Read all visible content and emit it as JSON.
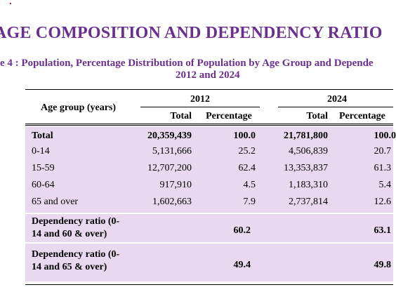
{
  "heading": "AGE COMPOSITION AND DEPENDENCY RATIO",
  "caption_line1": "e 4 : Population, Percentage Distribution of Population by Age Group and Depende",
  "caption_line2": "2012 and 2024",
  "table": {
    "row_header": "Age group (years)",
    "years": [
      "2012",
      "2024"
    ],
    "sub_headers": [
      "Total",
      "Percentage"
    ],
    "rows": [
      {
        "label": "Total",
        "t2012": "20,359,439",
        "p2012": "100.0",
        "t2024": "21,781,800",
        "p2024": "100.0"
      },
      {
        "label": "0-14",
        "t2012": "5,131,666",
        "p2012": "25.2",
        "t2024": "4,506,839",
        "p2024": "20.7"
      },
      {
        "label": "15-59",
        "t2012": "12,707,200",
        "p2012": "62.4",
        "t2024": "13,353,837",
        "p2024": "61.3"
      },
      {
        "label": "60-64",
        "t2012": "917,910",
        "p2012": "4.5",
        "t2024": "1,183,310",
        "p2024": "5.4"
      },
      {
        "label": "65 and over",
        "t2012": "1,602,663",
        "p2012": "7.9",
        "t2024": "2,737,814",
        "p2024": "12.6"
      }
    ],
    "ratios": [
      {
        "label_line1": "Dependency ratio (0-",
        "label_line2": "14 and 60 & over)",
        "v2012": "60.2",
        "v2024": "63.1"
      },
      {
        "label_line1": "Dependency ratio (0-",
        "label_line2": "14 and 65 & over)",
        "v2012": "49.4",
        "v2024": "49.8"
      }
    ]
  }
}
